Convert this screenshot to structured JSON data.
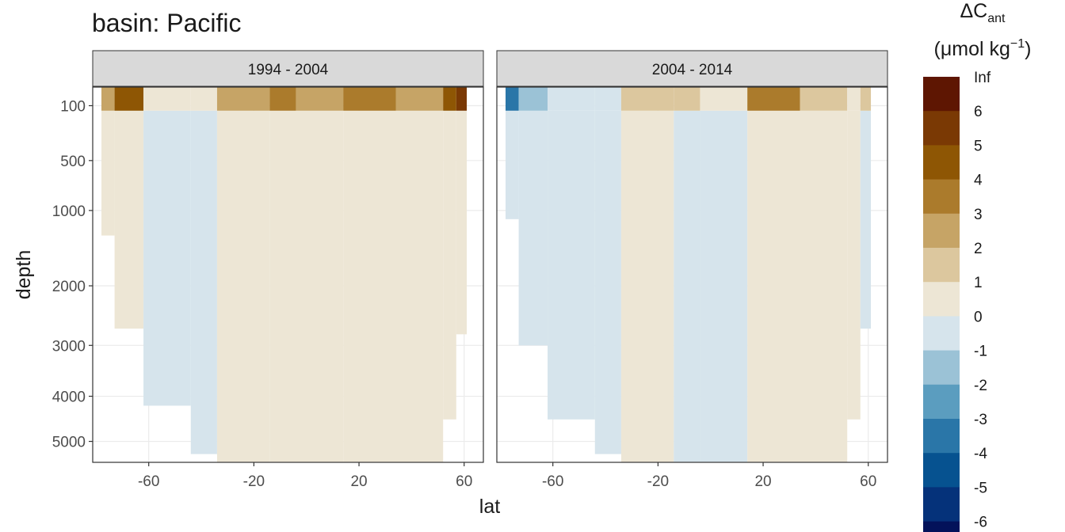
{
  "title": "basin: Pacific",
  "chart_data": {
    "type": "heatmap",
    "subtype": "filled-contour",
    "title": "basin: Pacific",
    "xlabel": "lat",
    "ylabel": "depth",
    "y_reversed": true,
    "y_scale": "sqrt",
    "xlim": [
      -78,
      64
    ],
    "ylim": [
      5500,
      0
    ],
    "x_ticks": [
      -60,
      -20,
      20,
      60
    ],
    "y_ticks": [
      100,
      500,
      1000,
      2000,
      3000,
      4000,
      5000
    ],
    "grid": true,
    "panels": [
      {
        "label": "1994 - 2004",
        "columns": [
          {
            "lat_range": [
              -78,
              -73
            ],
            "bottom": 1300,
            "surface": 2,
            "deep": 0
          },
          {
            "lat_range": [
              -73,
              -62
            ],
            "bottom": 2700,
            "surface": 4,
            "deep": 0
          },
          {
            "lat_range": [
              -62,
              -44
            ],
            "bottom": 4200,
            "surface": 0,
            "deep": -1
          },
          {
            "lat_range": [
              -44,
              -34
            ],
            "bottom": 5300,
            "surface": 0,
            "deep": -1
          },
          {
            "lat_range": [
              -34,
              -14
            ],
            "bottom": 5500,
            "surface": 2,
            "deep": 0
          },
          {
            "lat_range": [
              -14,
              -4
            ],
            "bottom": 5500,
            "surface": 3,
            "deep": 0
          },
          {
            "lat_range": [
              -4,
              14
            ],
            "bottom": 5500,
            "surface": 2,
            "deep": 0
          },
          {
            "lat_range": [
              14,
              34
            ],
            "bottom": 5500,
            "surface": 3,
            "deep": 0
          },
          {
            "lat_range": [
              34,
              52
            ],
            "bottom": 5500,
            "surface": 2,
            "deep": 0
          },
          {
            "lat_range": [
              52,
              57
            ],
            "bottom": 4500,
            "surface": 4,
            "deep": 0
          },
          {
            "lat_range": [
              57,
              61
            ],
            "bottom": 2800,
            "surface": 5,
            "deep": 0
          }
        ]
      },
      {
        "label": "2004 - 2014",
        "columns": [
          {
            "lat_range": [
              -78,
              -73
            ],
            "bottom": 1100,
            "surface": -4,
            "deep": -1
          },
          {
            "lat_range": [
              -73,
              -62
            ],
            "bottom": 3000,
            "surface": -2,
            "deep": -1
          },
          {
            "lat_range": [
              -62,
              -44
            ],
            "bottom": 4500,
            "surface": -1,
            "deep": -1
          },
          {
            "lat_range": [
              -44,
              -34
            ],
            "bottom": 5300,
            "surface": -1,
            "deep": -1
          },
          {
            "lat_range": [
              -34,
              -14
            ],
            "bottom": 5500,
            "surface": 1,
            "deep": 0
          },
          {
            "lat_range": [
              -14,
              -4
            ],
            "bottom": 5500,
            "surface": 1,
            "deep": -1
          },
          {
            "lat_range": [
              -4,
              14
            ],
            "bottom": 5500,
            "surface": 0,
            "deep": -1
          },
          {
            "lat_range": [
              14,
              34
            ],
            "bottom": 5500,
            "surface": 3,
            "deep": 0
          },
          {
            "lat_range": [
              34,
              52
            ],
            "bottom": 5500,
            "surface": 1,
            "deep": 0
          },
          {
            "lat_range": [
              52,
              57
            ],
            "bottom": 4500,
            "surface": 0,
            "deep": 0
          },
          {
            "lat_range": [
              57,
              61
            ],
            "bottom": 2700,
            "surface": 1,
            "deep": -1
          }
        ]
      }
    ],
    "legend": {
      "title_line1": "ΔC",
      "title_sub": "ant",
      "title_line2": "(μmol kg",
      "title_sup": "−1",
      "title_close": ")",
      "placement": "right",
      "levels": [
        "Inf",
        "6",
        "5",
        "4",
        "3",
        "2",
        "1",
        "0",
        "-1",
        "-2",
        "-3",
        "-4",
        "-5",
        "-6"
      ],
      "colors": [
        "#5e1602",
        "#7a3904",
        "#8e5604",
        "#ab7b2c",
        "#c6a466",
        "#dcc79e",
        "#ede6d5",
        "#d6e4ec",
        "#9bc2d6",
        "#5b9dbf",
        "#2a76a8",
        "#065290",
        "#05327a",
        "#03125a"
      ]
    },
    "color_scale": {
      "6": "#5e1602",
      "5": "#7a3904",
      "4": "#8e5604",
      "3": "#ab7b2c",
      "2": "#c6a466",
      "1": "#dcc79e",
      "0": "#ede6d5",
      "-1": "#d6e4ec",
      "-2": "#9bc2d6",
      "-3": "#5b9dbf",
      "-4": "#2a76a8",
      "-5": "#065290",
      "-6": "#05327a"
    },
    "strip_color": "#d9d9d9",
    "panel_border_color": "#333333",
    "grid_color": "#ebebeb"
  }
}
